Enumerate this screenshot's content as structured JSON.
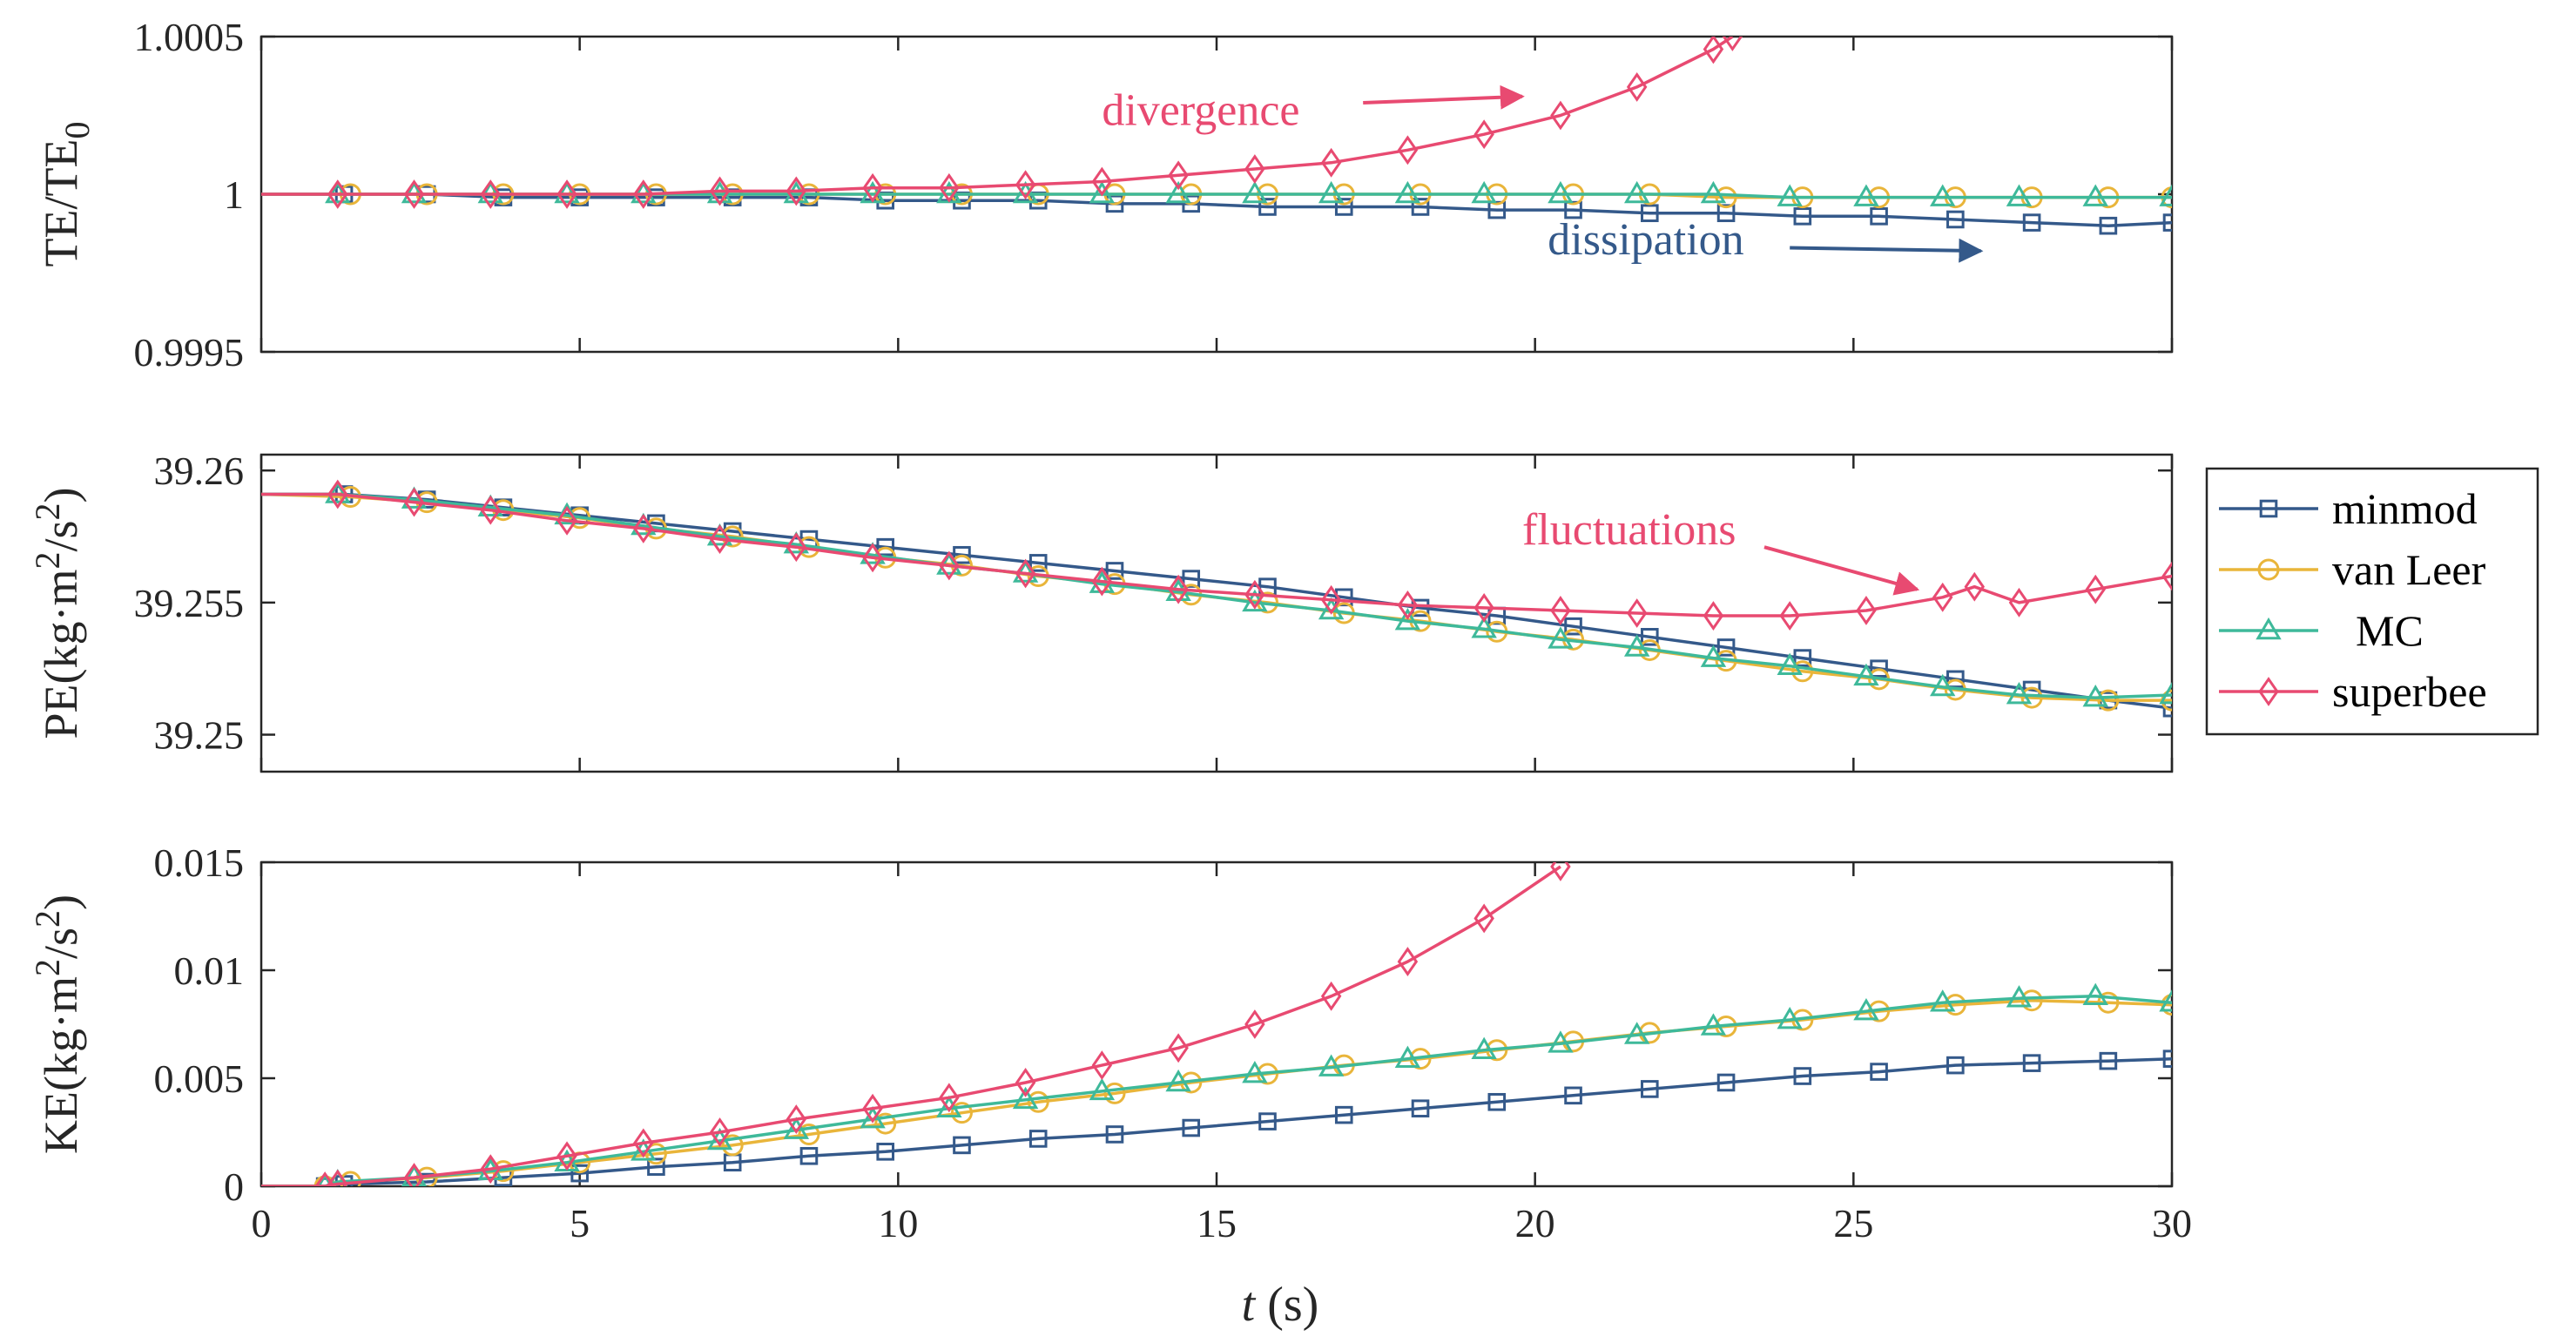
{
  "chart_data": {
    "type": "line",
    "x_axis": {
      "label_italic": "t",
      "label_rest": " (s)",
      "ticks": [
        "0",
        "5",
        "10",
        "15",
        "20",
        "25",
        "30"
      ],
      "range": [
        0,
        30
      ]
    },
    "colors": {
      "minmod": "#34598a",
      "van Leer": "#e9b53a",
      "MC": "#3eb99a",
      "superbee": "#e84a71",
      "axis": "#262626"
    },
    "legend": {
      "position": "right",
      "entries": [
        "minmod",
        "van Leer",
        "MC",
        "superbee"
      ]
    },
    "panels": [
      {
        "ylabel": {
          "main": "TE/TE",
          "sub": "0"
        },
        "ylim": [
          0.9995,
          1.0005
        ],
        "yticks": [
          {
            "v": 1.0005,
            "t": "1.0005"
          },
          {
            "v": 1,
            "t": "1"
          },
          {
            "v": 0.9995,
            "t": "0.9995"
          }
        ],
        "annotations": [
          {
            "text": "divergence",
            "color": "#e84a71",
            "at": [
              13.2,
              1.00022
            ],
            "arrow_from": [
              17.3,
              1.00029
            ],
            "arrow_to": [
              19.8,
              1.00031
            ]
          },
          {
            "text": "dissipation",
            "color": "#34598a",
            "at": [
              20.2,
              0.99981
            ],
            "arrow_from": [
              24.0,
              0.99983
            ],
            "arrow_to": [
              27.0,
              0.99982
            ]
          }
        ],
        "series": [
          {
            "name": "minmod",
            "marker": "square",
            "x": [
              0,
              1.3,
              2.6,
              3.8,
              5,
              6.2,
              7.4,
              8.6,
              9.8,
              11,
              12.2,
              13.4,
              14.6,
              15.8,
              17,
              18.2,
              19.4,
              20.6,
              21.8,
              23,
              24.2,
              25.4,
              26.6,
              27.8,
              29,
              30
            ],
            "y": [
              1,
              1,
              1,
              0.99999,
              0.99999,
              0.99999,
              0.99999,
              0.99999,
              0.99998,
              0.99998,
              0.99998,
              0.99997,
              0.99997,
              0.99996,
              0.99996,
              0.99996,
              0.99995,
              0.99995,
              0.99994,
              0.99994,
              0.99993,
              0.99993,
              0.99992,
              0.99991,
              0.9999,
              0.99991
            ]
          },
          {
            "name": "van Leer",
            "marker": "circle",
            "x": [
              0,
              1.4,
              2.6,
              3.8,
              5,
              6.2,
              7.4,
              8.6,
              9.8,
              11,
              12.2,
              13.4,
              14.6,
              15.8,
              17,
              18.2,
              19.4,
              20.6,
              21.8,
              23,
              24.2,
              25.4,
              26.6,
              27.8,
              29,
              30
            ],
            "y": [
              1,
              1,
              1,
              1,
              1,
              1,
              1,
              1,
              1,
              1,
              1,
              1,
              1,
              1,
              1,
              1,
              1,
              1,
              1,
              0.99999,
              0.99999,
              0.99999,
              0.99999,
              0.99999,
              0.99999,
              0.99999
            ]
          },
          {
            "name": "MC",
            "marker": "triangle",
            "x": [
              0,
              1.2,
              2.4,
              3.6,
              4.8,
              6,
              7.2,
              8.4,
              9.6,
              10.8,
              12,
              13.2,
              14.4,
              15.6,
              16.8,
              18,
              19.2,
              20.4,
              21.6,
              22.8,
              24,
              25.2,
              26.4,
              27.6,
              28.8,
              30
            ],
            "y": [
              1,
              1,
              1,
              1,
              1,
              1,
              1,
              1,
              1,
              1,
              1,
              1,
              1,
              1,
              1,
              1,
              1,
              1,
              1,
              1,
              0.99999,
              0.99999,
              0.99999,
              0.99999,
              0.99999,
              0.99999
            ]
          },
          {
            "name": "superbee",
            "marker": "diamond",
            "x": [
              0,
              1.2,
              2.4,
              3.6,
              4.8,
              6,
              7.2,
              8.4,
              9.6,
              10.8,
              12,
              13.2,
              14.4,
              15.6,
              16.8,
              18,
              19.2,
              20.4,
              21.6,
              22.8,
              23.1
            ],
            "y": [
              1,
              1,
              1,
              1,
              1,
              1,
              1.00001,
              1.00001,
              1.00002,
              1.00002,
              1.00003,
              1.00004,
              1.00006,
              1.00008,
              1.0001,
              1.00014,
              1.00019,
              1.00025,
              1.00034,
              1.00046,
              1.0005
            ]
          }
        ]
      },
      {
        "ylabel": {
          "main": "PE(kg·m",
          "sup1": "2",
          "mid": "/s",
          "sup2": "2",
          "end": ")"
        },
        "ylim": [
          39.2486,
          39.2606
        ],
        "yticks": [
          {
            "v": 39.26,
            "t": "39.26"
          },
          {
            "v": 39.255,
            "t": "39.255"
          },
          {
            "v": 39.25,
            "t": "39.25"
          }
        ],
        "annotations": [
          {
            "text": "fluctuations",
            "color": "#e84a71",
            "at": [
              19.8,
              39.2572
            ],
            "arrow_from": [
              23.6,
              39.2571
            ],
            "arrow_to": [
              26.0,
              39.2555
            ]
          }
        ],
        "series": [
          {
            "name": "minmod",
            "marker": "square",
            "x": [
              0,
              1.3,
              2.6,
              3.8,
              5,
              6.2,
              7.4,
              8.6,
              9.8,
              11,
              12.2,
              13.4,
              14.6,
              15.8,
              17,
              18.2,
              19.4,
              20.6,
              21.8,
              23,
              24.2,
              25.4,
              26.6,
              27.8,
              29,
              30
            ],
            "y": [
              39.2591,
              39.2591,
              39.2589,
              39.2586,
              39.2583,
              39.258,
              39.2577,
              39.2574,
              39.2571,
              39.2568,
              39.2565,
              39.2562,
              39.2559,
              39.2556,
              39.2552,
              39.2548,
              39.2545,
              39.2541,
              39.2537,
              39.2533,
              39.2529,
              39.2525,
              39.2521,
              39.2517,
              39.2513,
              39.251
            ]
          },
          {
            "name": "van Leer",
            "marker": "circle",
            "x": [
              0,
              1.4,
              2.6,
              3.8,
              5,
              6.2,
              7.4,
              8.6,
              9.8,
              11,
              12.2,
              13.4,
              14.6,
              15.8,
              17,
              18.2,
              19.4,
              20.6,
              21.8,
              23,
              24.2,
              25.4,
              26.6,
              27.8,
              29,
              30
            ],
            "y": [
              39.2591,
              39.259,
              39.2588,
              39.2585,
              39.2582,
              39.2578,
              39.2575,
              39.2571,
              39.2567,
              39.2564,
              39.256,
              39.2557,
              39.2553,
              39.255,
              39.2546,
              39.2543,
              39.2539,
              39.2536,
              39.2532,
              39.2528,
              39.2524,
              39.2521,
              39.2517,
              39.2514,
              39.2513,
              39.2513
            ]
          },
          {
            "name": "MC",
            "marker": "triangle",
            "x": [
              0,
              1.2,
              2.4,
              3.6,
              4.8,
              6,
              7.2,
              8.4,
              9.6,
              10.8,
              12,
              13.2,
              14.4,
              15.6,
              16.8,
              18,
              19.2,
              20.4,
              21.6,
              22.8,
              24,
              25.2,
              26.4,
              27.6,
              28.8,
              30
            ],
            "y": [
              39.2591,
              39.2591,
              39.2589,
              39.2586,
              39.2583,
              39.2579,
              39.2575,
              39.2572,
              39.2568,
              39.2564,
              39.2561,
              39.2557,
              39.2554,
              39.255,
              39.2547,
              39.2543,
              39.254,
              39.2536,
              39.2533,
              39.2529,
              39.2526,
              39.2522,
              39.2518,
              39.2515,
              39.2514,
              39.2515
            ]
          },
          {
            "name": "superbee",
            "marker": "diamond",
            "x": [
              0,
              1.2,
              2.4,
              3.6,
              4.8,
              6,
              7.2,
              8.4,
              9.6,
              10.8,
              12,
              13.2,
              14.4,
              15.6,
              16.8,
              18,
              19.2,
              20.4,
              21.6,
              22.8,
              24,
              25.2,
              26.4,
              26.9,
              27.6,
              28.8,
              30
            ],
            "y": [
              39.2591,
              39.2591,
              39.2588,
              39.2585,
              39.2581,
              39.2578,
              39.2574,
              39.2571,
              39.2567,
              39.2564,
              39.2561,
              39.2558,
              39.2555,
              39.2553,
              39.2551,
              39.2549,
              39.2548,
              39.2547,
              39.2546,
              39.2545,
              39.2545,
              39.2547,
              39.2552,
              39.2556,
              39.255,
              39.2555,
              39.256
            ]
          }
        ]
      },
      {
        "ylabel": {
          "main": "KE(kg·m",
          "sup1": "2",
          "mid": "/s",
          "sup2": "2",
          "end": ")"
        },
        "ylim": [
          0,
          0.015
        ],
        "yticks": [
          {
            "v": 0.015,
            "t": "0.015"
          },
          {
            "v": 0.01,
            "t": "0.01"
          },
          {
            "v": 0.005,
            "t": "0.005"
          },
          {
            "v": 0,
            "t": "0"
          }
        ],
        "annotations": [],
        "series": [
          {
            "name": "minmod",
            "marker": "square",
            "x": [
              0,
              1,
              1.3,
              2.6,
              3.8,
              5,
              6.2,
              7.4,
              8.6,
              9.8,
              11,
              12.2,
              13.4,
              14.6,
              15.8,
              17,
              18.2,
              19.4,
              20.6,
              21.8,
              23,
              24.2,
              25.4,
              26.6,
              27.8,
              29,
              30
            ],
            "y": [
              0,
              0,
              0.0001,
              0.0002,
              0.0004,
              0.0006,
              0.0009,
              0.0011,
              0.0014,
              0.0016,
              0.0019,
              0.0022,
              0.0024,
              0.0027,
              0.003,
              0.0033,
              0.0036,
              0.0039,
              0.0042,
              0.0045,
              0.0048,
              0.0051,
              0.0053,
              0.0056,
              0.0057,
              0.0058,
              0.0059
            ]
          },
          {
            "name": "van Leer",
            "marker": "circle",
            "x": [
              0,
              1,
              1.4,
              2.6,
              3.8,
              5,
              6.2,
              7.4,
              8.6,
              9.8,
              11,
              12.2,
              13.4,
              14.6,
              15.8,
              17,
              18.2,
              19.4,
              20.6,
              21.8,
              23,
              24.2,
              25.4,
              26.6,
              27.8,
              29,
              30
            ],
            "y": [
              0,
              0,
              0.0002,
              0.0004,
              0.0007,
              0.0011,
              0.0015,
              0.0019,
              0.0024,
              0.0029,
              0.0034,
              0.0039,
              0.0043,
              0.0048,
              0.0052,
              0.0056,
              0.0059,
              0.0063,
              0.0067,
              0.0071,
              0.0074,
              0.0077,
              0.0081,
              0.0084,
              0.0086,
              0.0085,
              0.0084
            ]
          },
          {
            "name": "MC",
            "marker": "triangle",
            "x": [
              0,
              1,
              1.2,
              2.4,
              3.6,
              4.8,
              6,
              7.2,
              8.4,
              9.6,
              10.8,
              12,
              13.2,
              14.4,
              15.6,
              16.8,
              18,
              19.2,
              20.4,
              21.6,
              22.8,
              24,
              25.2,
              26.4,
              27.6,
              28.8,
              30
            ],
            "y": [
              0,
              0,
              0.0002,
              0.0004,
              0.0007,
              0.0011,
              0.0016,
              0.0021,
              0.0026,
              0.0031,
              0.0036,
              0.004,
              0.0044,
              0.0048,
              0.0052,
              0.0055,
              0.0059,
              0.0063,
              0.0066,
              0.007,
              0.0074,
              0.0077,
              0.0081,
              0.0085,
              0.0087,
              0.0088,
              0.0085
            ]
          },
          {
            "name": "superbee",
            "marker": "diamond",
            "x": [
              0,
              1,
              1.2,
              2.4,
              3.6,
              4.8,
              6,
              7.2,
              8.4,
              9.6,
              10.8,
              12,
              13.2,
              14.4,
              15.6,
              16.8,
              18,
              19.2,
              20.4
            ],
            "y": [
              0,
              0,
              0.0001,
              0.0004,
              0.0008,
              0.0014,
              0.002,
              0.0025,
              0.0031,
              0.0036,
              0.0041,
              0.0048,
              0.0056,
              0.0064,
              0.0075,
              0.0088,
              0.0104,
              0.0124,
              0.0148
            ]
          }
        ]
      }
    ]
  }
}
